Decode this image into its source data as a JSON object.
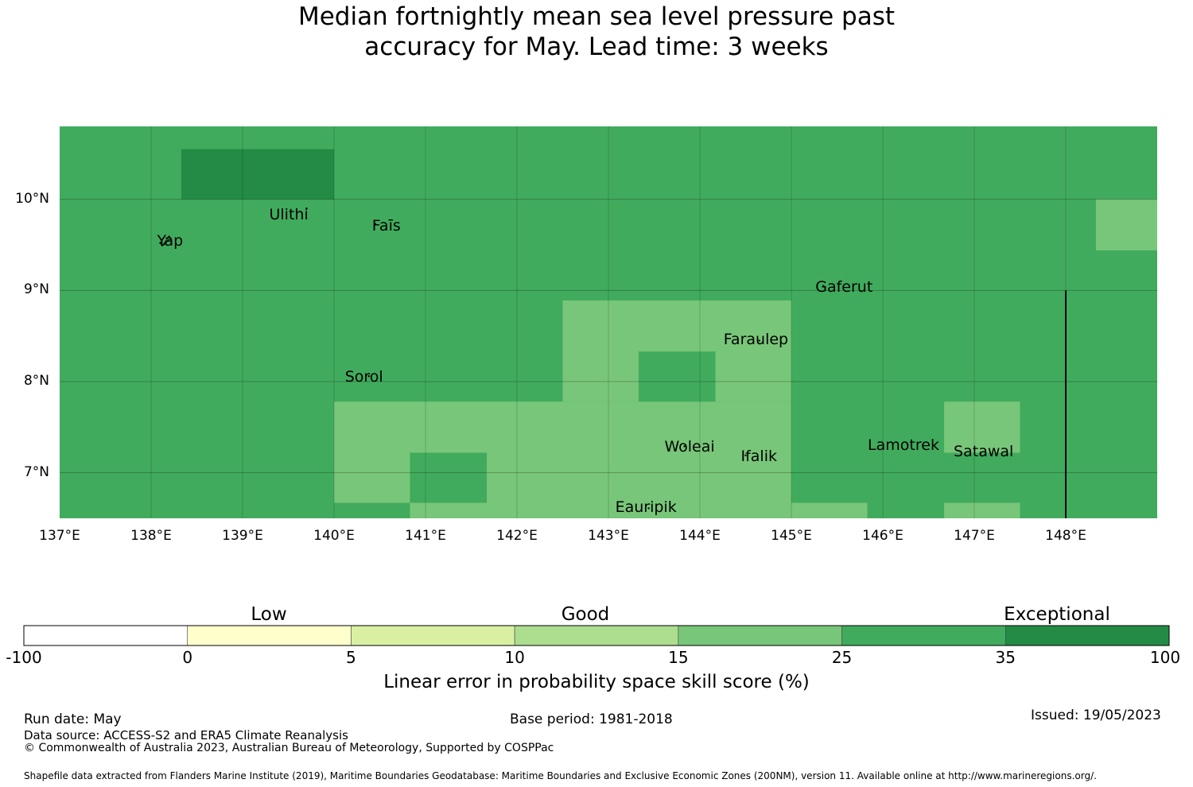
{
  "title": {
    "line1": "Median fortnightly mean sea level pressure past",
    "line2": "accuracy for May. Lead time: 3 weeks"
  },
  "map": {
    "lon_range": [
      137,
      149
    ],
    "lat_range": [
      6.5,
      10.8
    ],
    "lat_ticks": [
      "10°N",
      "9°N",
      "8°N",
      "7°N"
    ],
    "lon_ticks": [
      "137°E",
      "138°E",
      "139°E",
      "140°E",
      "141°E",
      "142°E",
      "143°E",
      "144°E",
      "145°E",
      "146°E",
      "147°E",
      "148°E"
    ],
    "base_color": "#41ab5d",
    "patches": [
      {
        "lon": [
          138.33,
          140.0
        ],
        "lat": [
          10.0,
          10.55
        ],
        "category": "35-100",
        "color": "#238b45"
      },
      {
        "lon": [
          148.33,
          149.0
        ],
        "lat": [
          9.44,
          10.0
        ],
        "category": "15-25",
        "color": "#78c679"
      },
      {
        "lon": [
          142.5,
          145.0
        ],
        "lat": [
          7.78,
          8.89
        ],
        "category": "15-25",
        "color": "#78c679"
      },
      {
        "lon": [
          140.0,
          145.0
        ],
        "lat": [
          6.67,
          7.78
        ],
        "category": "15-25",
        "color": "#78c679"
      },
      {
        "lon": [
          140.83,
          145.0
        ],
        "lat": [
          6.5,
          6.67
        ],
        "category": "15-25",
        "color": "#78c679"
      },
      {
        "lon": [
          143.33,
          144.17
        ],
        "lat": [
          7.78,
          8.33
        ],
        "category": "25-35",
        "color": "#41ab5d"
      },
      {
        "lon": [
          140.83,
          141.67
        ],
        "lat": [
          6.67,
          7.22
        ],
        "category": "25-35",
        "color": "#41ab5d"
      },
      {
        "lon": [
          145.0,
          145.83
        ],
        "lat": [
          6.5,
          6.67
        ],
        "category": "15-25",
        "color": "#78c679"
      },
      {
        "lon": [
          146.67,
          147.5
        ],
        "lat": [
          7.22,
          7.78
        ],
        "category": "15-25",
        "color": "#78c679"
      },
      {
        "lon": [
          146.67,
          147.5
        ],
        "lat": [
          6.5,
          6.67
        ],
        "category": "15-25",
        "color": "#78c679"
      }
    ],
    "boundary_line": {
      "lon": 148.0,
      "lat": [
        6.5,
        9.0
      ]
    },
    "places": [
      {
        "name": "Yap",
        "lon": 138.1,
        "lat": 9.52
      },
      {
        "name": "Ulithi",
        "lon": 139.7,
        "lat": 9.9
      },
      {
        "name": "Faīs",
        "lon": 140.45,
        "lat": 9.73
      },
      {
        "name": "Gaferut",
        "lon": 145.35,
        "lat": 9.05
      },
      {
        "name": "Faraulep",
        "lon": 144.65,
        "lat": 8.45
      },
      {
        "name": "Sorol",
        "lon": 140.38,
        "lat": 8.06
      },
      {
        "name": "Woleai",
        "lon": 143.83,
        "lat": 7.29
      },
      {
        "name": "Ifalik",
        "lon": 144.5,
        "lat": 7.19
      },
      {
        "name": "Lamotrek",
        "lon": 146.27,
        "lat": 7.31
      },
      {
        "name": "Satawal",
        "lon": 147.07,
        "lat": 7.22
      },
      {
        "name": "Eauripik",
        "lon": 143.44,
        "lat": 6.61
      }
    ]
  },
  "colorbar": {
    "categories": [
      "Low",
      "Good",
      "Exceptional"
    ],
    "ticks": [
      "-100",
      "0",
      "5",
      "10",
      "15",
      "25",
      "35",
      "100"
    ],
    "colors": [
      "#ffffff",
      "#ffffcc",
      "#d9f0a3",
      "#addd8e",
      "#78c679",
      "#41ab5d",
      "#238b45"
    ],
    "label": "Linear error in probability space skill score (%)"
  },
  "footer": {
    "run_date": "Run date: May",
    "base_period": "Base period: 1981-2018",
    "issued": "Issued: 19/05/2023",
    "data_source": "Data source: ACCESS-S2 and ERA5 Climate Reanalysis",
    "copyright": "© Commonwealth of Australia 2023, Australian Bureau of Meteorology, Supported by COSPPac",
    "shapefile": "Shapefile data extracted from Flanders Marine Institute (2019), Maritime Boundaries Geodatabase: Maritime Boundaries and Exclusive Economic Zones (200NM), version 11. Available online at http://www.marineregions.org/."
  }
}
